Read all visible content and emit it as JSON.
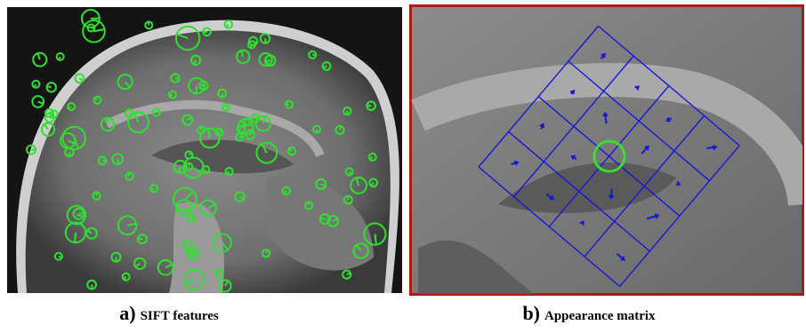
{
  "panels": [
    {
      "letter": "a)",
      "caption": "SIFT features"
    },
    {
      "letter": "b)",
      "caption": "Appearance matrix"
    }
  ]
}
